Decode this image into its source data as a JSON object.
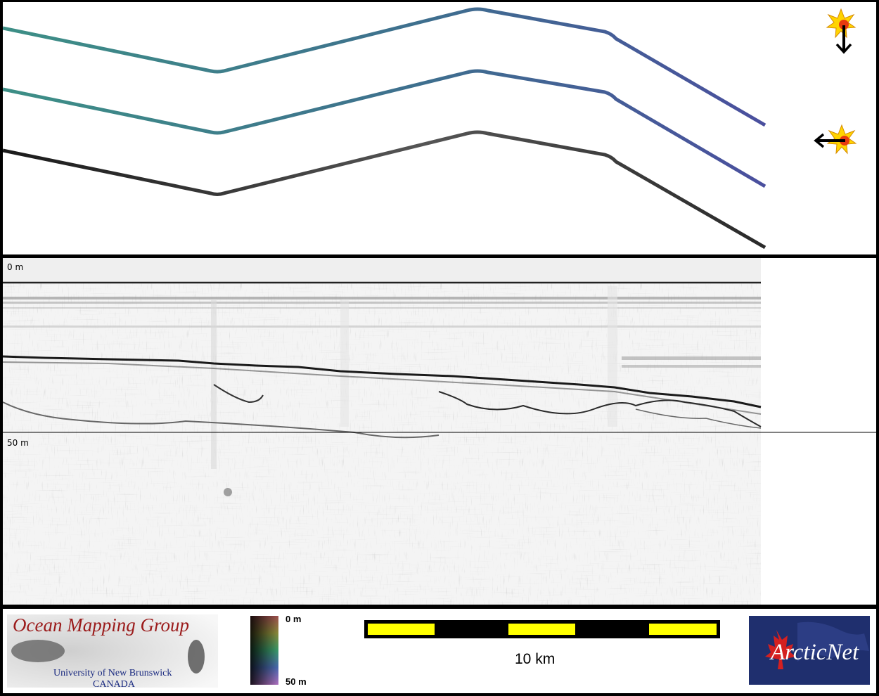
{
  "profile": {
    "depth_top_label": "0 m",
    "depth_mid_label": "50 m"
  },
  "legend": {
    "logo_left": {
      "title": "Ocean Mapping Group",
      "subtitle_line1": "University of New Brunswick",
      "subtitle_line2": "CANADA"
    },
    "colorbar": {
      "top_label": "0 m",
      "bottom_label": "50 m"
    },
    "scalebar": {
      "label": "10 km",
      "segments": 5,
      "colors": [
        "#ffff00",
        "#000000"
      ]
    },
    "logo_right": {
      "text": "ArcticNet"
    }
  },
  "track_view": {
    "sun_icons": [
      "sun-icon",
      "sun-icon"
    ],
    "colors": {
      "teal": "#3d8f86",
      "blue": "#4a4f9e",
      "dark": "#222222"
    }
  }
}
